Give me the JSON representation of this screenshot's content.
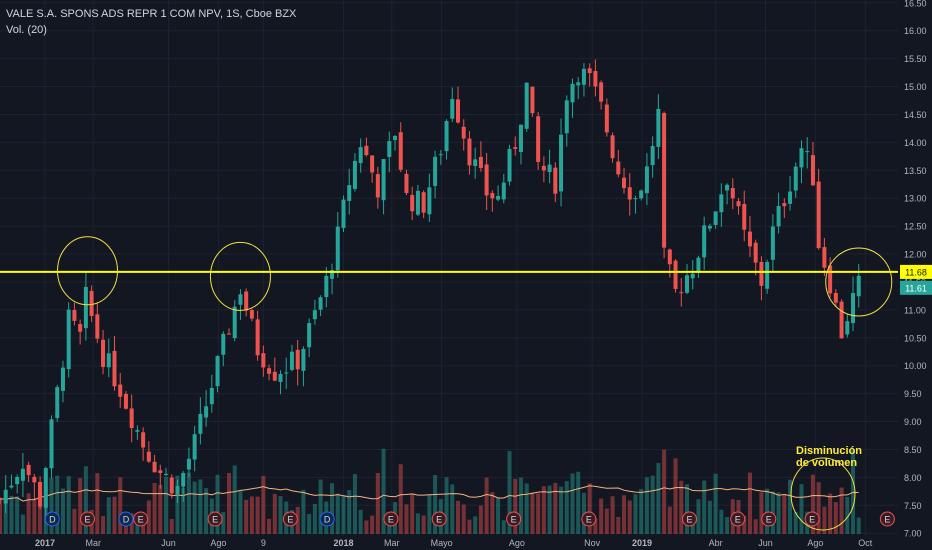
{
  "header": {
    "symbol_line": "VALE S.A. SPONS ADS REPR 1 COM NPV, 1S, Cboe BZX",
    "volume_line": "Vol. (20)"
  },
  "annotation": {
    "line1": "Disminución",
    "line2": "de volumen"
  },
  "price_labels": {
    "resistance": "11.68",
    "last": "11.61"
  },
  "colors": {
    "background": "#131722",
    "up": "#26a69a",
    "down": "#ef5350",
    "resistance_line": "#ffff00",
    "ma_line": "#f5b380",
    "circle": "#f0e040"
  },
  "event_markers": [
    {
      "label": "D",
      "date": "2017-01-10",
      "type": "dividend"
    },
    {
      "label": "E",
      "date": "2017-02-22",
      "type": "earnings"
    },
    {
      "label": "D",
      "date": "2017-04-10",
      "type": "dividend"
    },
    {
      "label": "E",
      "date": "2017-04-28",
      "type": "earnings"
    },
    {
      "label": "E",
      "date": "2017-07-28",
      "type": "earnings"
    },
    {
      "label": "E",
      "date": "2017-10-28",
      "type": "earnings"
    },
    {
      "label": "D",
      "date": "2017-12-12",
      "type": "dividend"
    },
    {
      "label": "E",
      "date": "2018-02-28",
      "type": "earnings"
    },
    {
      "label": "E",
      "date": "2018-04-28",
      "type": "earnings"
    },
    {
      "label": "E",
      "date": "2018-07-28",
      "type": "earnings"
    },
    {
      "label": "E",
      "date": "2018-10-28",
      "type": "earnings"
    },
    {
      "label": "E",
      "date": "2019-02-28",
      "type": "earnings"
    },
    {
      "label": "E",
      "date": "2019-04-28",
      "type": "earnings"
    },
    {
      "label": "E",
      "date": "2019-06-05",
      "type": "earnings"
    },
    {
      "label": "E",
      "date": "2019-07-28",
      "type": "earnings"
    },
    {
      "label": "E",
      "date": "2019-10-28",
      "type": "earnings"
    }
  ],
  "chart_data": {
    "type": "candlestick",
    "title": "VALE S.A. SPONS ADS REPR 1 COM NPV, 1S, Cboe BZX",
    "interval": "1 week",
    "y_axis_position": "right",
    "ylim": [
      6.95,
      16.55
    ],
    "y_ticks": [
      "7.00",
      "7.50",
      "8.00",
      "8.50",
      "9.00",
      "9.50",
      "10.00",
      "10.50",
      "11.00",
      "11.50",
      "12.00",
      "12.50",
      "13.00",
      "13.50",
      "14.00",
      "14.50",
      "15.00",
      "15.50",
      "16.00",
      "16.50"
    ],
    "x_ticks": [
      {
        "label": "2017",
        "date": "2017-01-01"
      },
      {
        "label": "Mar",
        "date": "2017-03-01"
      },
      {
        "label": "Jun",
        "date": "2017-06-01"
      },
      {
        "label": "Ago",
        "date": "2017-08-01"
      },
      {
        "label": "9",
        "date": "2017-09-25"
      },
      {
        "label": "2018",
        "date": "2018-01-01"
      },
      {
        "label": "Mar",
        "date": "2018-03-01"
      },
      {
        "label": "Mayo",
        "date": "2018-05-01"
      },
      {
        "label": "Ago",
        "date": "2018-08-01"
      },
      {
        "label": "Nov",
        "date": "2018-11-01"
      },
      {
        "label": "2019",
        "date": "2019-01-01"
      },
      {
        "label": "Abr",
        "date": "2019-04-01"
      },
      {
        "label": "Jun",
        "date": "2019-06-01"
      },
      {
        "label": "Ago",
        "date": "2019-08-01"
      },
      {
        "label": "Oct",
        "date": "2019-10-01"
      }
    ],
    "x_start_date": "2016-11-07",
    "x_end_date": "2019-11-10",
    "resistance_level": 11.68,
    "last_price": 11.61,
    "ohlc_key_points": [
      {
        "date": "2016-11-07",
        "close": 7.6
      },
      {
        "date": "2016-12-05",
        "close": 8.3
      },
      {
        "date": "2016-12-26",
        "close": 7.6
      },
      {
        "date": "2017-01-16",
        "close": 9.5
      },
      {
        "date": "2017-01-30",
        "close": 10.8
      },
      {
        "date": "2017-02-13",
        "close": 10.5
      },
      {
        "date": "2017-02-20",
        "close": 11.2
      },
      {
        "date": "2017-03-13",
        "close": 10.2
      },
      {
        "date": "2017-04-03",
        "close": 9.6
      },
      {
        "date": "2017-05-01",
        "close": 8.6
      },
      {
        "date": "2017-05-22",
        "close": 8.1
      },
      {
        "date": "2017-06-12",
        "close": 7.8
      },
      {
        "date": "2017-07-03",
        "close": 8.6
      },
      {
        "date": "2017-07-31",
        "close": 10.0
      },
      {
        "date": "2017-08-28",
        "close": 11.4
      },
      {
        "date": "2017-09-18",
        "close": 10.3
      },
      {
        "date": "2017-10-09",
        "close": 9.9
      },
      {
        "date": "2017-11-06",
        "close": 10.1
      },
      {
        "date": "2017-11-27",
        "close": 10.9
      },
      {
        "date": "2017-12-11",
        "close": 11.5
      },
      {
        "date": "2017-12-25",
        "close": 12.3
      },
      {
        "date": "2018-01-08",
        "close": 13.3
      },
      {
        "date": "2018-01-22",
        "close": 14.0
      },
      {
        "date": "2018-02-12",
        "close": 13.2
      },
      {
        "date": "2018-03-05",
        "close": 14.2
      },
      {
        "date": "2018-03-19",
        "close": 13.0
      },
      {
        "date": "2018-04-09",
        "close": 12.9
      },
      {
        "date": "2018-04-30",
        "close": 13.9
      },
      {
        "date": "2018-05-14",
        "close": 14.9
      },
      {
        "date": "2018-06-04",
        "close": 13.8
      },
      {
        "date": "2018-06-25",
        "close": 13.1
      },
      {
        "date": "2018-07-09",
        "close": 13.0
      },
      {
        "date": "2018-07-30",
        "close": 14.0
      },
      {
        "date": "2018-08-13",
        "close": 15.0
      },
      {
        "date": "2018-08-27",
        "close": 13.6
      },
      {
        "date": "2018-09-17",
        "close": 13.3
      },
      {
        "date": "2018-10-01",
        "close": 14.9
      },
      {
        "date": "2018-10-15",
        "close": 15.3
      },
      {
        "date": "2018-10-29",
        "close": 15.1
      },
      {
        "date": "2018-11-12",
        "close": 14.6
      },
      {
        "date": "2018-12-03",
        "close": 13.5
      },
      {
        "date": "2018-12-24",
        "close": 13.0
      },
      {
        "date": "2019-01-07",
        "close": 13.5
      },
      {
        "date": "2019-01-21",
        "close": 14.5
      },
      {
        "date": "2019-01-28",
        "close": 11.9
      },
      {
        "date": "2019-02-11",
        "close": 11.3
      },
      {
        "date": "2019-03-04",
        "close": 11.8
      },
      {
        "date": "2019-03-25",
        "close": 12.6
      },
      {
        "date": "2019-04-15",
        "close": 13.4
      },
      {
        "date": "2019-05-06",
        "close": 12.3
      },
      {
        "date": "2019-05-27",
        "close": 11.5
      },
      {
        "date": "2019-06-10",
        "close": 12.4
      },
      {
        "date": "2019-07-01",
        "close": 13.3
      },
      {
        "date": "2019-07-15",
        "close": 13.9
      },
      {
        "date": "2019-07-29",
        "close": 13.4
      },
      {
        "date": "2019-08-05",
        "close": 12.2
      },
      {
        "date": "2019-08-19",
        "close": 11.5
      },
      {
        "date": "2019-09-02",
        "close": 10.6
      },
      {
        "date": "2019-09-16",
        "close": 11.2
      },
      {
        "date": "2019-09-23",
        "close": 11.61
      }
    ],
    "volume_series": {
      "name": "Vol. (20)",
      "type": "histogram",
      "with_moving_average": true
    }
  }
}
